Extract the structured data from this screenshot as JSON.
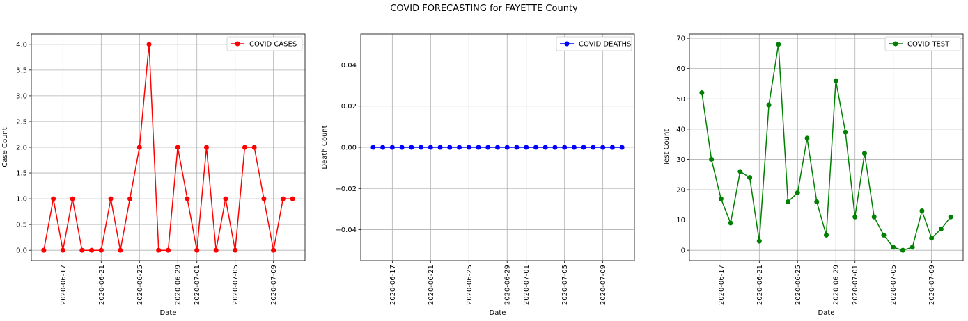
{
  "figure": {
    "suptitle": "COVID FORECASTING for FAYETTE County"
  },
  "chart_data": [
    {
      "type": "line",
      "x": [
        "2020-06-15",
        "2020-06-16",
        "2020-06-17",
        "2020-06-18",
        "2020-06-19",
        "2020-06-20",
        "2020-06-21",
        "2020-06-22",
        "2020-06-23",
        "2020-06-24",
        "2020-06-25",
        "2020-06-26",
        "2020-06-27",
        "2020-06-28",
        "2020-06-29",
        "2020-06-30",
        "2020-07-01",
        "2020-07-02",
        "2020-07-03",
        "2020-07-04",
        "2020-07-05",
        "2020-07-06",
        "2020-07-07",
        "2020-07-08",
        "2020-07-09",
        "2020-07-10",
        "2020-07-11"
      ],
      "series": [
        {
          "name": "COVID CASES",
          "color": "#ff0000",
          "values": [
            0,
            1,
            0,
            1,
            0,
            0,
            0,
            1,
            0,
            1,
            2,
            4,
            0,
            0,
            2,
            1,
            0,
            2,
            0,
            1,
            0,
            2,
            2,
            1,
            0,
            1,
            1
          ]
        }
      ],
      "xlabel": "Date",
      "ylabel": "Case Count",
      "ylim": [
        -0.2,
        4.2
      ],
      "yticks": [
        "0.0",
        "0.5",
        "1.0",
        "1.5",
        "2.0",
        "2.5",
        "3.0",
        "3.5",
        "4.0"
      ],
      "xticks": [
        "2020-06-17",
        "2020-06-21",
        "2020-06-25",
        "2020-06-29",
        "2020-07-01",
        "2020-07-05",
        "2020-07-09"
      ],
      "grid": true,
      "legend": "upper right"
    },
    {
      "type": "line",
      "x": [
        "2020-06-15",
        "2020-06-16",
        "2020-06-17",
        "2020-06-18",
        "2020-06-19",
        "2020-06-20",
        "2020-06-21",
        "2020-06-22",
        "2020-06-23",
        "2020-06-24",
        "2020-06-25",
        "2020-06-26",
        "2020-06-27",
        "2020-06-28",
        "2020-06-29",
        "2020-06-30",
        "2020-07-01",
        "2020-07-02",
        "2020-07-03",
        "2020-07-04",
        "2020-07-05",
        "2020-07-06",
        "2020-07-07",
        "2020-07-08",
        "2020-07-09",
        "2020-07-10",
        "2020-07-11"
      ],
      "series": [
        {
          "name": "COVID DEATHS",
          "color": "#0000ff",
          "values": [
            0,
            0,
            0,
            0,
            0,
            0,
            0,
            0,
            0,
            0,
            0,
            0,
            0,
            0,
            0,
            0,
            0,
            0,
            0,
            0,
            0,
            0,
            0,
            0,
            0,
            0,
            0
          ]
        }
      ],
      "xlabel": "Date",
      "ylabel": "Death Count",
      "ylim": [
        -0.055,
        0.055
      ],
      "yticks": [
        "−0.04",
        "−0.02",
        "0.00",
        "0.02",
        "0.04"
      ],
      "xticks": [
        "2020-06-17",
        "2020-06-21",
        "2020-06-25",
        "2020-06-29",
        "2020-07-01",
        "2020-07-05",
        "2020-07-09"
      ],
      "grid": true,
      "legend": "upper right"
    },
    {
      "type": "line",
      "x": [
        "2020-06-15",
        "2020-06-16",
        "2020-06-17",
        "2020-06-18",
        "2020-06-19",
        "2020-06-20",
        "2020-06-21",
        "2020-06-22",
        "2020-06-23",
        "2020-06-24",
        "2020-06-25",
        "2020-06-26",
        "2020-06-27",
        "2020-06-28",
        "2020-06-29",
        "2020-06-30",
        "2020-07-01",
        "2020-07-02",
        "2020-07-03",
        "2020-07-04",
        "2020-07-05",
        "2020-07-06",
        "2020-07-07",
        "2020-07-08",
        "2020-07-09",
        "2020-07-10",
        "2020-07-11"
      ],
      "series": [
        {
          "name": "COVID TEST",
          "color": "#008000",
          "values": [
            52,
            30,
            17,
            9,
            26,
            24,
            3,
            48,
            68,
            16,
            19,
            37,
            16,
            5,
            56,
            39,
            11,
            32,
            11,
            5,
            1,
            0,
            1,
            13,
            4,
            7,
            11
          ]
        }
      ],
      "xlabel": "Date",
      "ylabel": "Test Count",
      "ylim": [
        -3.4,
        71.4
      ],
      "yticks": [
        "0",
        "10",
        "20",
        "30",
        "40",
        "50",
        "60",
        "70"
      ],
      "xticks": [
        "2020-06-17",
        "2020-06-21",
        "2020-06-25",
        "2020-06-29",
        "2020-07-01",
        "2020-07-05",
        "2020-07-09"
      ],
      "grid": true,
      "legend": "upper right"
    }
  ]
}
